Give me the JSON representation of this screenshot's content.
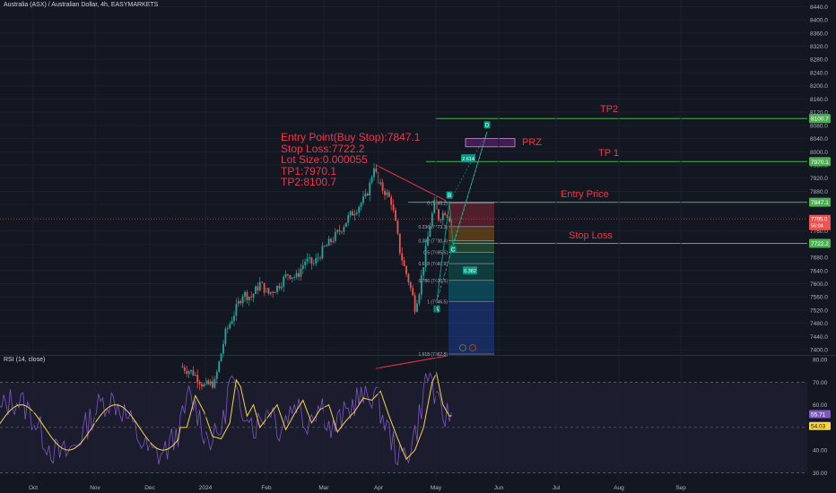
{
  "header": {
    "instrument_title": "Australia (ASX) / Australian Dollar, 4h, EASYMARKETS",
    "rsi_title": "RSI (14, close)"
  },
  "annotations": {
    "entry_note": [
      "Entry Point(Buy Stop):7847.1",
      "Stop Loss:7722.2",
      "Lot Size:0.000055",
      "TP1:7970.1",
      "TP2:8100.7"
    ],
    "tp2_label": "TP2",
    "tp1_label": "TP 1",
    "prz_label": "PRZ",
    "entry_label": "Entry Price",
    "stop_label": "Stop Loss"
  },
  "colors": {
    "background": "#131722",
    "bull": "#26a69a",
    "bear": "#ef5350",
    "level_line": "#4caf50",
    "annotation_red": "#f23645",
    "rsi_line": "#7e57c2",
    "rsi_ma": "#f5d547",
    "prz_box": "#9c27b0",
    "harmonic": "#089981"
  },
  "chart_data": {
    "type": "candlestick",
    "price_axis": {
      "ticks": [
        8440,
        8400,
        8360,
        8320,
        8280,
        8240,
        8200,
        8160,
        8120,
        8080,
        8040,
        8000,
        7960,
        7920,
        7880,
        7840,
        7800,
        7760,
        7720,
        7680,
        7640,
        7600,
        7560,
        7520,
        7480,
        7440,
        7400
      ],
      "tick_labels": [
        "8440.0",
        "8400.0",
        "8360.0",
        "8320.0",
        "8280.0",
        "8240.0",
        "8200.0",
        "8160.0",
        "8120.0",
        "8080.0",
        "8040.0",
        "8000.0",
        "7960.0",
        "7920.0",
        "7880.0",
        "7840.0",
        "7800.0",
        "7760.0",
        "7720.0",
        "7680.0",
        "7640.0",
        "7600.0",
        "7560.0",
        "7520.0",
        "7480.0",
        "7440.0",
        "7400.0"
      ],
      "range": [
        7384,
        8460
      ]
    },
    "time_axis": {
      "labels": [
        "Oct",
        "Nov",
        "Dec",
        "2024",
        "Feb",
        "Mar",
        "Apr",
        "May",
        "Jun",
        "Jul",
        "Aug",
        "Sep"
      ]
    },
    "price_path": [
      [
        0,
        7350
      ],
      [
        6,
        7330
      ],
      [
        11,
        7290
      ],
      [
        16,
        7300
      ],
      [
        21,
        7450
      ],
      [
        25,
        7510
      ],
      [
        29,
        7570
      ],
      [
        33,
        7560
      ],
      [
        37,
        7600
      ],
      [
        41,
        7570
      ],
      [
        45,
        7590
      ],
      [
        50,
        7630
      ],
      [
        54,
        7620
      ],
      [
        58,
        7670
      ],
      [
        62,
        7660
      ],
      [
        66,
        7700
      ],
      [
        70,
        7730
      ],
      [
        74,
        7760
      ],
      [
        78,
        7800
      ],
      [
        82,
        7830
      ],
      [
        86,
        7860
      ],
      [
        88,
        7900
      ],
      [
        90,
        7960
      ],
      [
        92,
        7900
      ],
      [
        95,
        7880
      ],
      [
        98,
        7850
      ],
      [
        100,
        7780
      ],
      [
        102,
        7700
      ],
      [
        104,
        7650
      ],
      [
        106,
        7610
      ],
      [
        108,
        7560
      ],
      [
        109,
        7530
      ],
      [
        111,
        7580
      ],
      [
        112,
        7620
      ],
      [
        114,
        7700
      ],
      [
        116,
        7780
      ],
      [
        118,
        7840
      ],
      [
        120,
        7800
      ],
      [
        123,
        7820
      ],
      [
        126,
        7790
      ]
    ],
    "price_path_note": "Approximate close path; x = bar index, y = price. The candles drawn before bar 21 sit below the visible price range.",
    "last_price": {
      "value": "7795.0",
      "countdown": "56:04"
    },
    "levels": [
      {
        "name": "TP2",
        "value": "8100.7"
      },
      {
        "name": "TP1",
        "value": "7970.1"
      },
      {
        "name": "Entry Price",
        "value": "7847.1"
      },
      {
        "name": "Stop Loss",
        "value": "7722.2"
      }
    ],
    "fib_levels": [
      {
        "ratio": "0",
        "label": "0 (7845.2)"
      },
      {
        "ratio": "0.236",
        "label": "0.236 (7773.3)"
      },
      {
        "ratio": "0.382",
        "label": "0.382 (7730.4)"
      },
      {
        "ratio": "0.5",
        "label": "0.5 (7695.5)"
      },
      {
        "ratio": "0.618",
        "label": "0.618 (7660.9)"
      },
      {
        "ratio": "0.786",
        "label": "0.786 (7610.5)"
      },
      {
        "ratio": "1",
        "label": "1 (7546.5)"
      },
      {
        "ratio": "1.618",
        "label": "1.618 (7362.8)"
      }
    ],
    "harmonic_points": [
      {
        "label": "A"
      },
      {
        "label": "B"
      },
      {
        "label": "C"
      },
      {
        "label": "D"
      }
    ],
    "harmonic_ratios": [
      "0.382",
      "2.614"
    ],
    "rsi": {
      "axis_ticks": [
        80,
        70,
        60,
        50,
        40,
        30
      ],
      "tick_labels": [
        "80.00",
        "70.00",
        "60.00",
        "50.00",
        "40.00",
        "30.00"
      ],
      "range": [
        27,
        82
      ],
      "bands": [
        70,
        50,
        30
      ],
      "values": [
        [
          0,
          50
        ],
        [
          4,
          64
        ],
        [
          8,
          57
        ],
        [
          12,
          46
        ],
        [
          16,
          45
        ],
        [
          20,
          52
        ],
        [
          23,
          71
        ],
        [
          25,
          68
        ],
        [
          28,
          55
        ],
        [
          31,
          60
        ],
        [
          34,
          50
        ],
        [
          38,
          55
        ],
        [
          42,
          60
        ],
        [
          46,
          49
        ],
        [
          50,
          56
        ],
        [
          54,
          62
        ],
        [
          58,
          52
        ],
        [
          62,
          58
        ],
        [
          66,
          60
        ],
        [
          70,
          48
        ],
        [
          74,
          53
        ],
        [
          78,
          57
        ],
        [
          82,
          63
        ],
        [
          86,
          62
        ],
        [
          90,
          66
        ],
        [
          94,
          55
        ],
        [
          98,
          45
        ],
        [
          102,
          36
        ],
        [
          106,
          40
        ],
        [
          110,
          50
        ],
        [
          114,
          70
        ],
        [
          116,
          74
        ],
        [
          119,
          60
        ],
        [
          122,
          55
        ],
        [
          126,
          56
        ]
      ],
      "last_value": "55.71",
      "last_ma": "54.03"
    }
  }
}
